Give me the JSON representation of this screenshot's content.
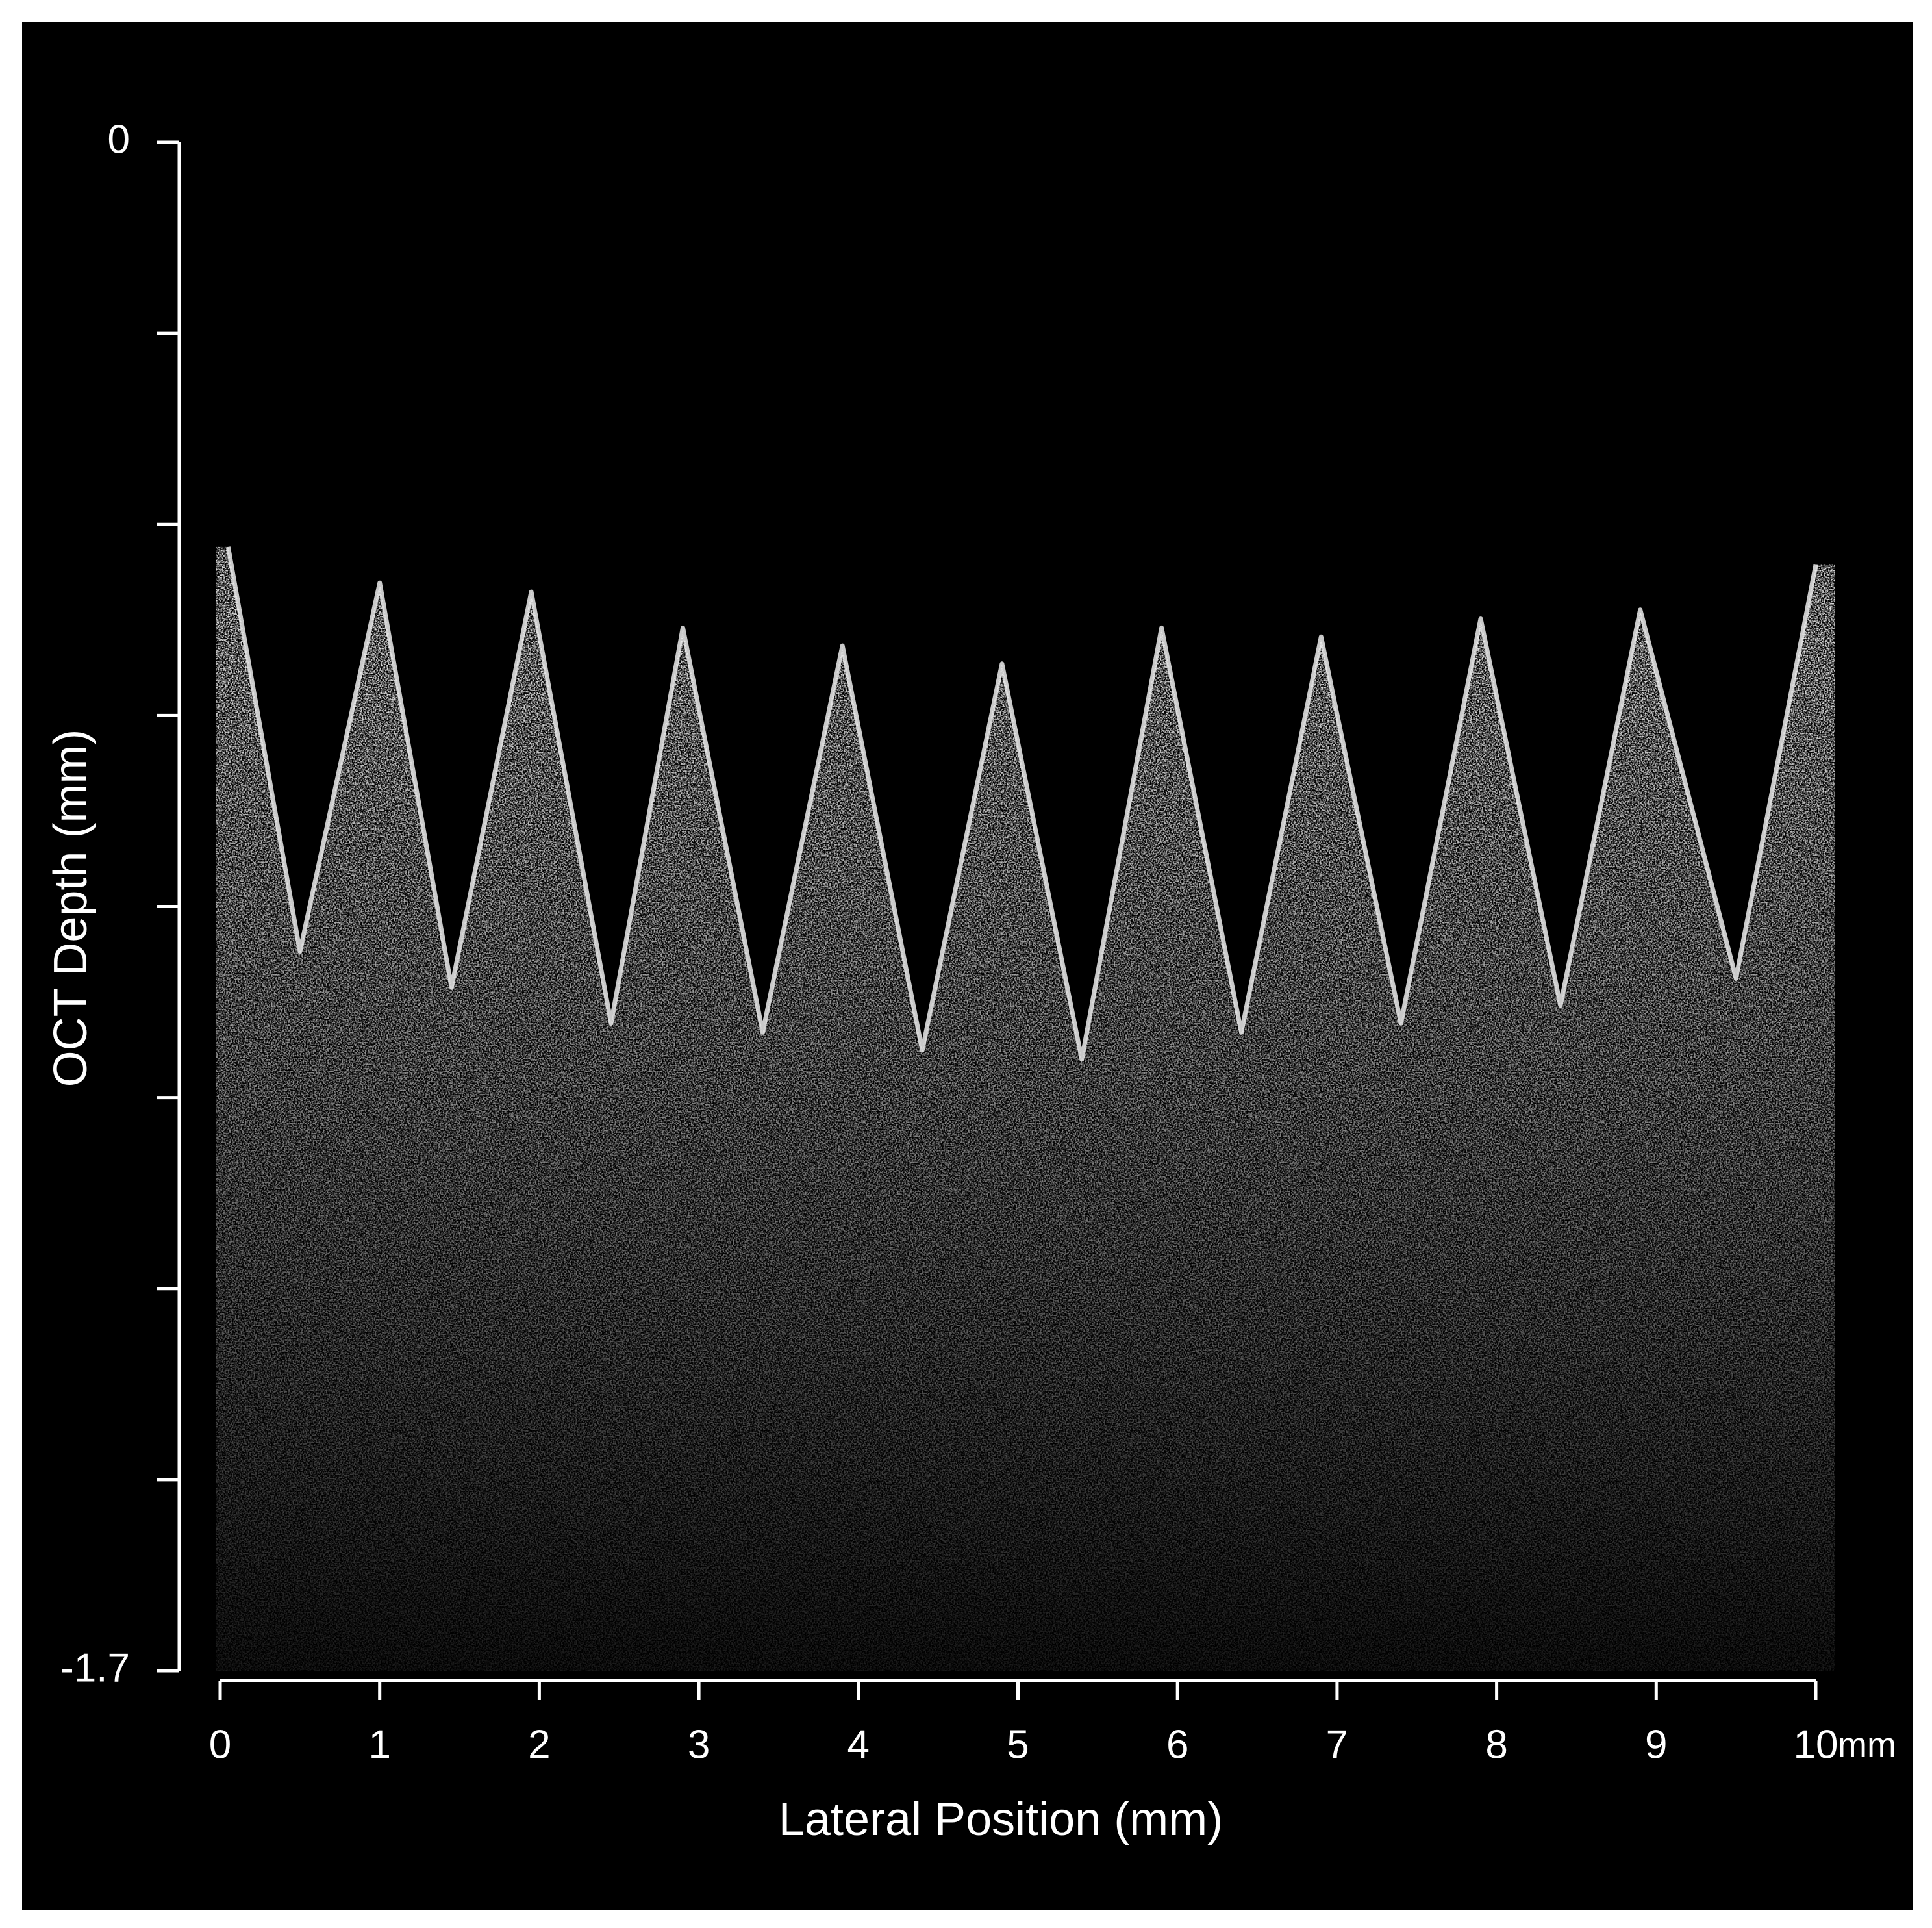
{
  "chart_data": {
    "type": "line",
    "xlabel": "Lateral Position (mm)",
    "ylabel": "OCT Depth (mm)",
    "x_unit": "mm",
    "xlim": [
      0,
      10
    ],
    "xticks": [
      0,
      1,
      2,
      3,
      4,
      5,
      6,
      7,
      8,
      9,
      10
    ],
    "ylim": [
      -1.7,
      0
    ],
    "yticks": [
      0,
      -1.7
    ],
    "y_minor_ticks": [
      -0.2125,
      -0.425,
      -0.6375,
      -0.85,
      -1.0625,
      -1.275,
      -1.4875
    ],
    "color": "#ececec",
    "x": [
      0.05,
      0.5,
      1,
      1.45,
      1.95,
      2.45,
      2.9,
      3.4,
      3.9,
      4.4,
      4.9,
      5.4,
      5.9,
      6.4,
      6.9,
      7.4,
      7.9,
      8.4,
      8.9,
      9.5,
      10
    ],
    "values": [
      -0.45,
      -0.9,
      -0.49,
      -0.94,
      -0.5,
      -0.98,
      -0.54,
      -0.99,
      -0.56,
      -1.01,
      -0.58,
      -1.02,
      -0.54,
      -0.99,
      -0.55,
      -0.98,
      -0.53,
      -0.96,
      -0.52,
      -0.93,
      -0.47
    ]
  }
}
